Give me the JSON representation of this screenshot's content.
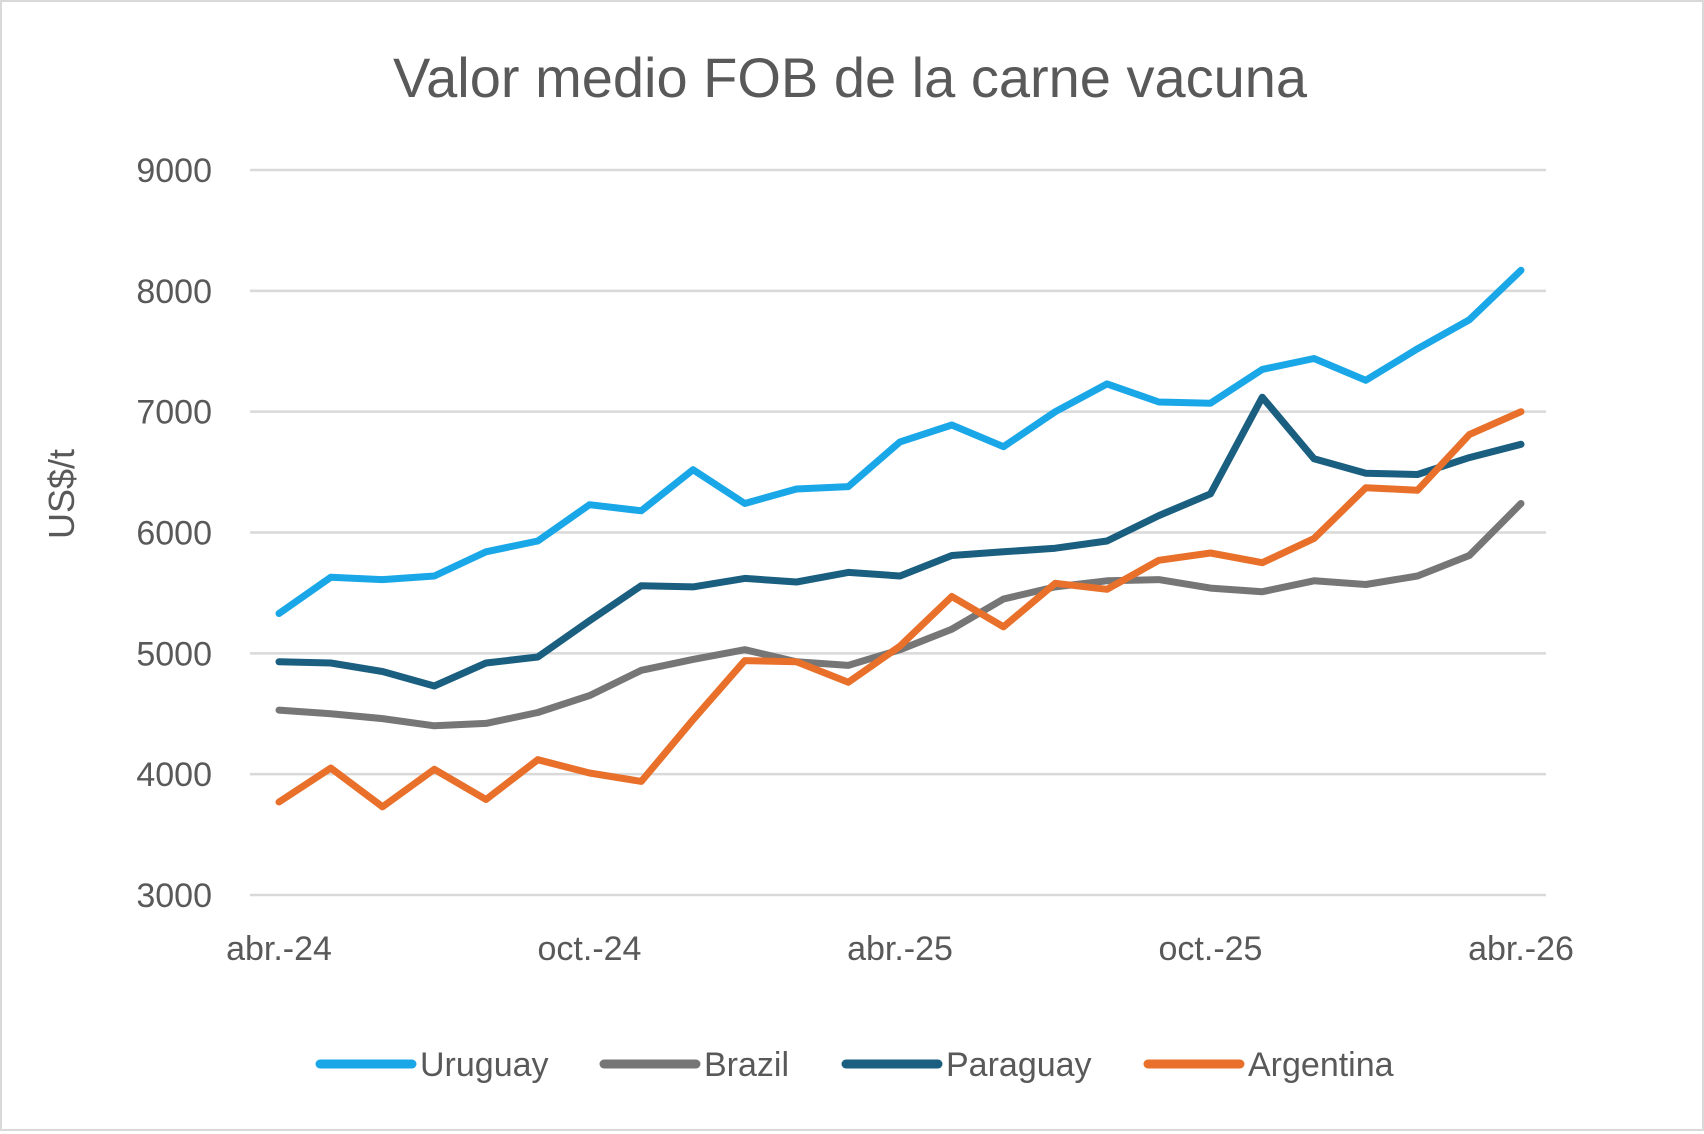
{
  "chart_data": {
    "type": "line",
    "title": "Valor medio FOB de la carne vacuna",
    "xlabel": "",
    "ylabel": "US$/t",
    "ylim": [
      3000,
      9000
    ],
    "yticks": [
      "9000",
      "8000",
      "7000",
      "6000",
      "5000",
      "4000",
      "3000"
    ],
    "ytick_values": [
      9000,
      8000,
      7000,
      6000,
      5000,
      4000,
      3000
    ],
    "x": [
      "abr.-24",
      "may.-24",
      "jun.-24",
      "jul.-24",
      "ago.-24",
      "sep.-24",
      "oct.-24",
      "nov.-24",
      "dic.-24",
      "ene.-25",
      "feb.-25",
      "mar.-25",
      "abr.-25",
      "may.-25",
      "jun.-25",
      "jul.-25",
      "ago.-25",
      "sep.-25",
      "oct.-25",
      "nov.-25",
      "dic.-25",
      "ene.-26",
      "feb.-26",
      "mar.-26",
      "abr.-26"
    ],
    "xtick_labels": [
      {
        "label": "abr.-24",
        "x": "abr.-24"
      },
      {
        "label": "oct.-24",
        "x": "oct.-24"
      },
      {
        "label": "abr.-25",
        "x": "abr.-25"
      },
      {
        "label": "oct.-25",
        "x": "oct.-25"
      },
      {
        "label": "abr.-26",
        "x": "abr.-26"
      }
    ],
    "grid": true,
    "legend_position": "bottom",
    "series": [
      {
        "name": "Uruguay",
        "color": "#1aa7e8",
        "values": [
          5330,
          5630,
          5610,
          5640,
          5840,
          5930,
          6230,
          6180,
          6520,
          6240,
          6360,
          6380,
          6750,
          6890,
          6710,
          7000,
          7230,
          7080,
          7070,
          7350,
          7440,
          7260,
          7520,
          7760,
          8170
        ]
      },
      {
        "name": "Brazil",
        "color": "#767676",
        "values": [
          4530,
          4500,
          4460,
          4400,
          4420,
          4510,
          4650,
          4860,
          4950,
          5030,
          4930,
          4900,
          5030,
          5200,
          5450,
          5550,
          5600,
          5610,
          5540,
          5510,
          5600,
          5570,
          5640,
          5810,
          6240
        ]
      },
      {
        "name": "Paraguay",
        "color": "#1a5e80",
        "values": [
          4930,
          4920,
          4850,
          4730,
          4920,
          4970,
          5270,
          5560,
          5550,
          5620,
          5590,
          5670,
          5640,
          5810,
          5840,
          5870,
          5930,
          6140,
          6320,
          7120,
          6610,
          6490,
          6480,
          6620,
          6730
        ]
      },
      {
        "name": "Argentina",
        "color": "#e8702a",
        "values": [
          3770,
          4050,
          3730,
          4040,
          3790,
          4120,
          4010,
          3940,
          4450,
          4940,
          4930,
          4760,
          5060,
          5470,
          5220,
          5580,
          5530,
          5770,
          5830,
          5750,
          5950,
          6370,
          6350,
          6810,
          7000
        ]
      }
    ]
  }
}
